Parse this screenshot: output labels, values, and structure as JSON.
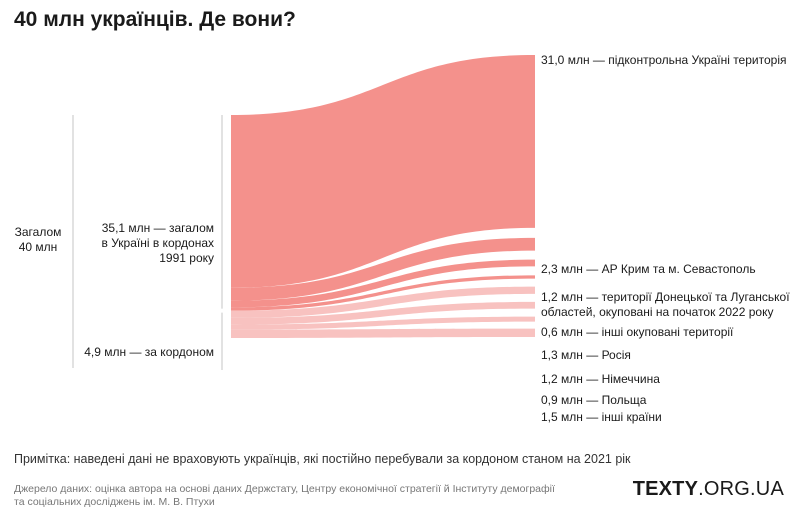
{
  "title": "40 млн українців. Де вони?",
  "chart_data": {
    "type": "sankey",
    "title": "40 млн українців. Де вони?",
    "unit": "млн",
    "root": {
      "label_lines": [
        "Загалом",
        "40 млн"
      ],
      "value": 40.0
    },
    "groups": [
      {
        "id": "inside",
        "label_lines": [
          "35,1 млн — загалом",
          "в Україні в кордонах",
          "1991 року"
        ],
        "value": 35.1
      },
      {
        "id": "abroad",
        "label_lines": [
          "4,9 млн — за кордоном"
        ],
        "value": 4.9
      }
    ],
    "flows": [
      {
        "group": "inside",
        "value": 31.0,
        "label_lines": [
          "31,0 млн — підконтрольна Україні територія"
        ]
      },
      {
        "group": "inside",
        "value": 2.3,
        "label_lines": [
          "2,3 млн — АР Крим та м. Севастополь"
        ]
      },
      {
        "group": "inside",
        "value": 1.2,
        "label_lines": [
          "1,2 млн — території Донецької та Луганської",
          "областей, окуповані на початок 2022 року"
        ]
      },
      {
        "group": "inside",
        "value": 0.6,
        "label_lines": [
          "0,6 млн — інші окуповані території"
        ]
      },
      {
        "group": "abroad",
        "value": 1.3,
        "label_lines": [
          "1,3 млн — Росія"
        ]
      },
      {
        "group": "abroad",
        "value": 1.2,
        "label_lines": [
          "1,2 млн — Німеччина"
        ]
      },
      {
        "group": "abroad",
        "value": 0.9,
        "label_lines": [
          "0,9 млн — Польща"
        ]
      },
      {
        "group": "abroad",
        "value": 1.5,
        "label_lines": [
          "1,5 млн — інші країни"
        ]
      }
    ],
    "colors": {
      "inside": "#f4918c",
      "abroad": "#f8c2c0"
    }
  },
  "note": "Примітка: наведені дані не враховують українців, які постійно перебували за кордоном станом на 2021 рік",
  "source_lines": [
    "Джерело даних: оцінка автора на основі даних Держстату, Центру економічної стратегії й Інституту демографії",
    "та соціальних досліджень ім. М. В. Птухи"
  ],
  "brand": {
    "bold": "TEXTY",
    "rest": ".ORG.UA"
  }
}
